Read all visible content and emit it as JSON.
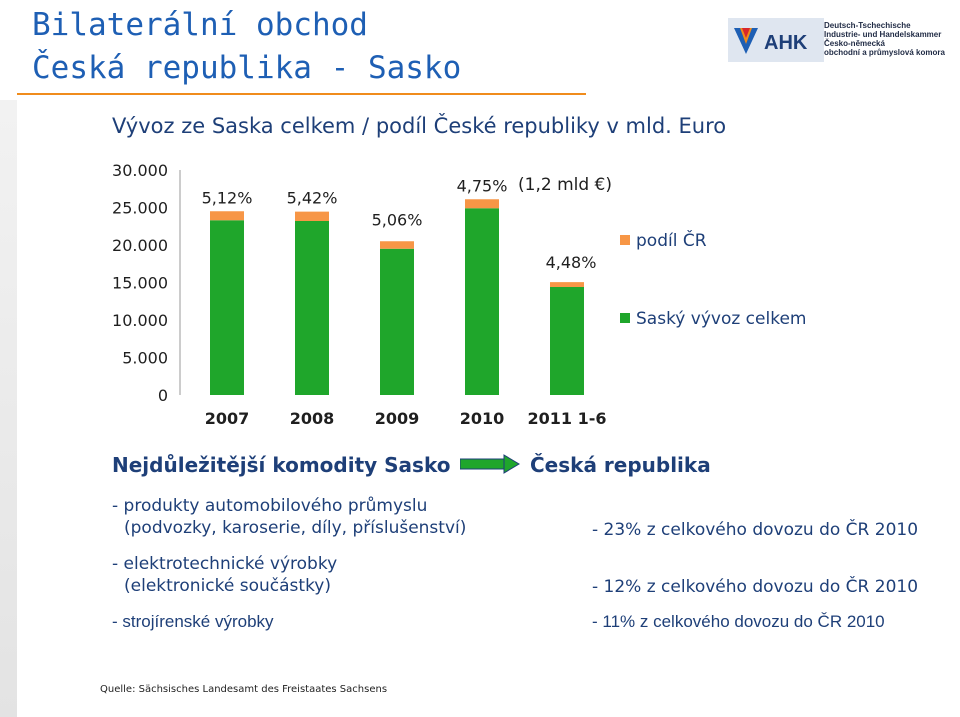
{
  "header": {
    "title_line1": "Bilaterální obchod",
    "title_line2": "Česká republika - Sasko"
  },
  "logo": {
    "mark": "AHK",
    "line1": "Deutsch-Tschechische",
    "line2": "Industrie- und Handelskammer",
    "line3": "Česko-německá",
    "line4": "obchodní a průmyslová komora"
  },
  "chart_data": {
    "type": "bar",
    "title": "Vývoz ze Saska celkem / podíl České republiky v  mld. Euro",
    "categories": [
      "2007",
      "2008",
      "2009",
      "2010",
      "2011 1-6"
    ],
    "ylim": [
      0,
      30000
    ],
    "yticks": [
      "30.000",
      "25.000",
      "20.000",
      "15.000",
      "10.000",
      "5.000",
      "0"
    ],
    "series": [
      {
        "name": "Saský vývoz celkem",
        "color": "#1fa62b",
        "values": [
          23300,
          23200,
          19500,
          24900,
          14400
        ]
      },
      {
        "name": "podíl ČR",
        "color": "#f79646",
        "values": [
          1200,
          1250,
          1000,
          1200,
          650
        ]
      }
    ],
    "data_labels": [
      "5,12%",
      "5,42%",
      "5,06%",
      "4,75%",
      "4,48%"
    ],
    "annotation": "(1,2 mld €)",
    "grid": false,
    "legend": "right"
  },
  "commodities": {
    "heading_left": "Nejdůležitější komodity Sasko",
    "heading_right": "Česká republika",
    "items": [
      {
        "line1": "- produkty automobilového průmyslu",
        "line2": "(podvozky, karoserie, díly, příslušenství)",
        "share": "- 23% z celkového dovozu do  ČR 2010"
      },
      {
        "line1": "- elektrotechnické výrobky",
        "line2": "(elektronické součástky)",
        "share": "- 12% z celkového dovozu do  ČR 2010"
      },
      {
        "line1": "- strojírenské výrobky",
        "share": "- 11% z celkového dovozu do  ČR 2010"
      }
    ]
  },
  "source": "Quelle: Sächsisches Landesamt des Freistaates Sachsens"
}
